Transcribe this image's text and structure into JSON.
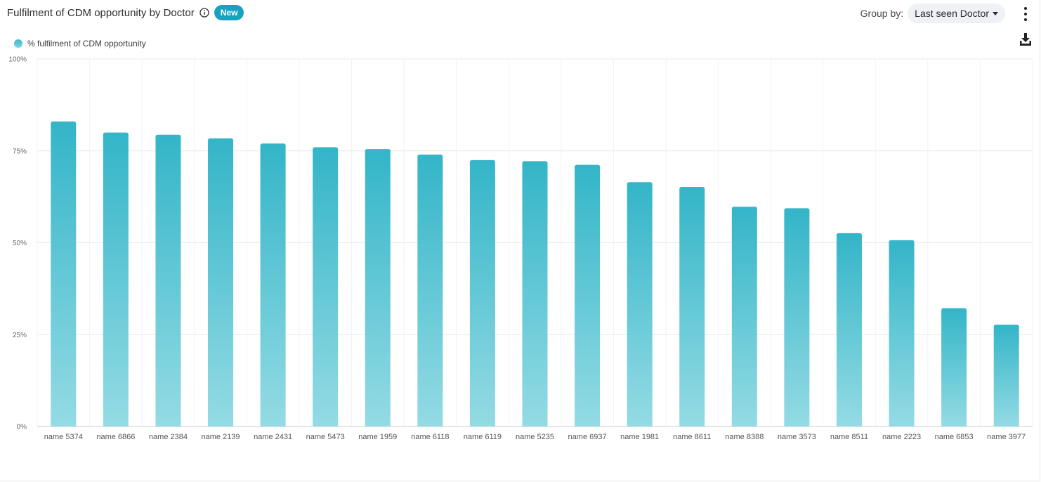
{
  "header": {
    "title": "Fulfilment of CDM opportunity by Doctor",
    "badge": "New",
    "group_by_label": "Group by:",
    "group_by_value": "Last seen Doctor"
  },
  "icons": {
    "info": "info-icon",
    "caret": "caret-down-icon",
    "menu": "kebab-menu-icon",
    "download": "download-icon"
  },
  "colors": {
    "accent": "#17a2c2",
    "bar_top": "#33b5c8",
    "bar_bottom": "#94dbe4"
  },
  "legend": {
    "label": "% fulfilment of CDM opportunity"
  },
  "chart_data": {
    "type": "bar",
    "categories": [
      "name 5374",
      "name 6866",
      "name 2384",
      "name 2139",
      "name 2431",
      "name 5473",
      "name 1959",
      "name 6118",
      "name 6119",
      "name 5235",
      "name 6937",
      "name 1981",
      "name 8611",
      "name 8388",
      "name 3573",
      "name 8511",
      "name 2223",
      "name 6853",
      "name 3977"
    ],
    "series": [
      {
        "name": "% fulfilment of CDM opportunity",
        "values": [
          83,
          80,
          79.4,
          78.4,
          77,
          76,
          75.5,
          74,
          72.5,
          72.2,
          71.2,
          66.5,
          65.2,
          59.8,
          59.4,
          52.6,
          50.7,
          32.2,
          27.7
        ]
      }
    ],
    "ylim": [
      0,
      100
    ],
    "yticks": [
      "0%",
      "25%",
      "50%",
      "75%",
      "100%"
    ],
    "ytick_values": [
      0,
      25,
      50,
      75,
      100
    ],
    "grid": true,
    "legend_position": "top-left"
  }
}
